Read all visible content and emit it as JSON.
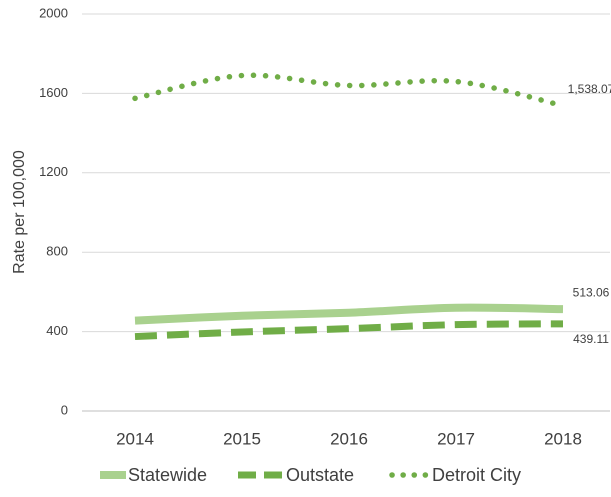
{
  "chart_data": {
    "type": "line",
    "y_label": "Rate per 100,000",
    "categories": [
      "2014",
      "2015",
      "2016",
      "2017",
      "2018"
    ],
    "series": [
      {
        "name": "Statewide",
        "color": "#a9d18e",
        "style": "solid",
        "values": [
          455,
          480,
          495,
          520,
          513.06
        ],
        "value_labels": [
          null,
          null,
          null,
          null,
          "513.06"
        ]
      },
      {
        "name": "Outstate",
        "color": "#70ad47",
        "style": "dashed",
        "values": [
          375,
          398,
          415,
          435,
          439.11
        ],
        "value_labels": [
          null,
          null,
          null,
          null,
          "439.11"
        ]
      },
      {
        "name": "Detroit City",
        "color": "#70ad47",
        "style": "dotted",
        "values": [
          1575,
          1690,
          1640,
          1660,
          1538.07
        ],
        "value_labels": [
          null,
          null,
          null,
          null,
          "1,538.07"
        ]
      }
    ],
    "ylim": [
      0,
      2000
    ],
    "yticks": [
      0,
      400,
      800,
      1200,
      1600,
      2000
    ],
    "grid": true,
    "legend": "bottom"
  }
}
